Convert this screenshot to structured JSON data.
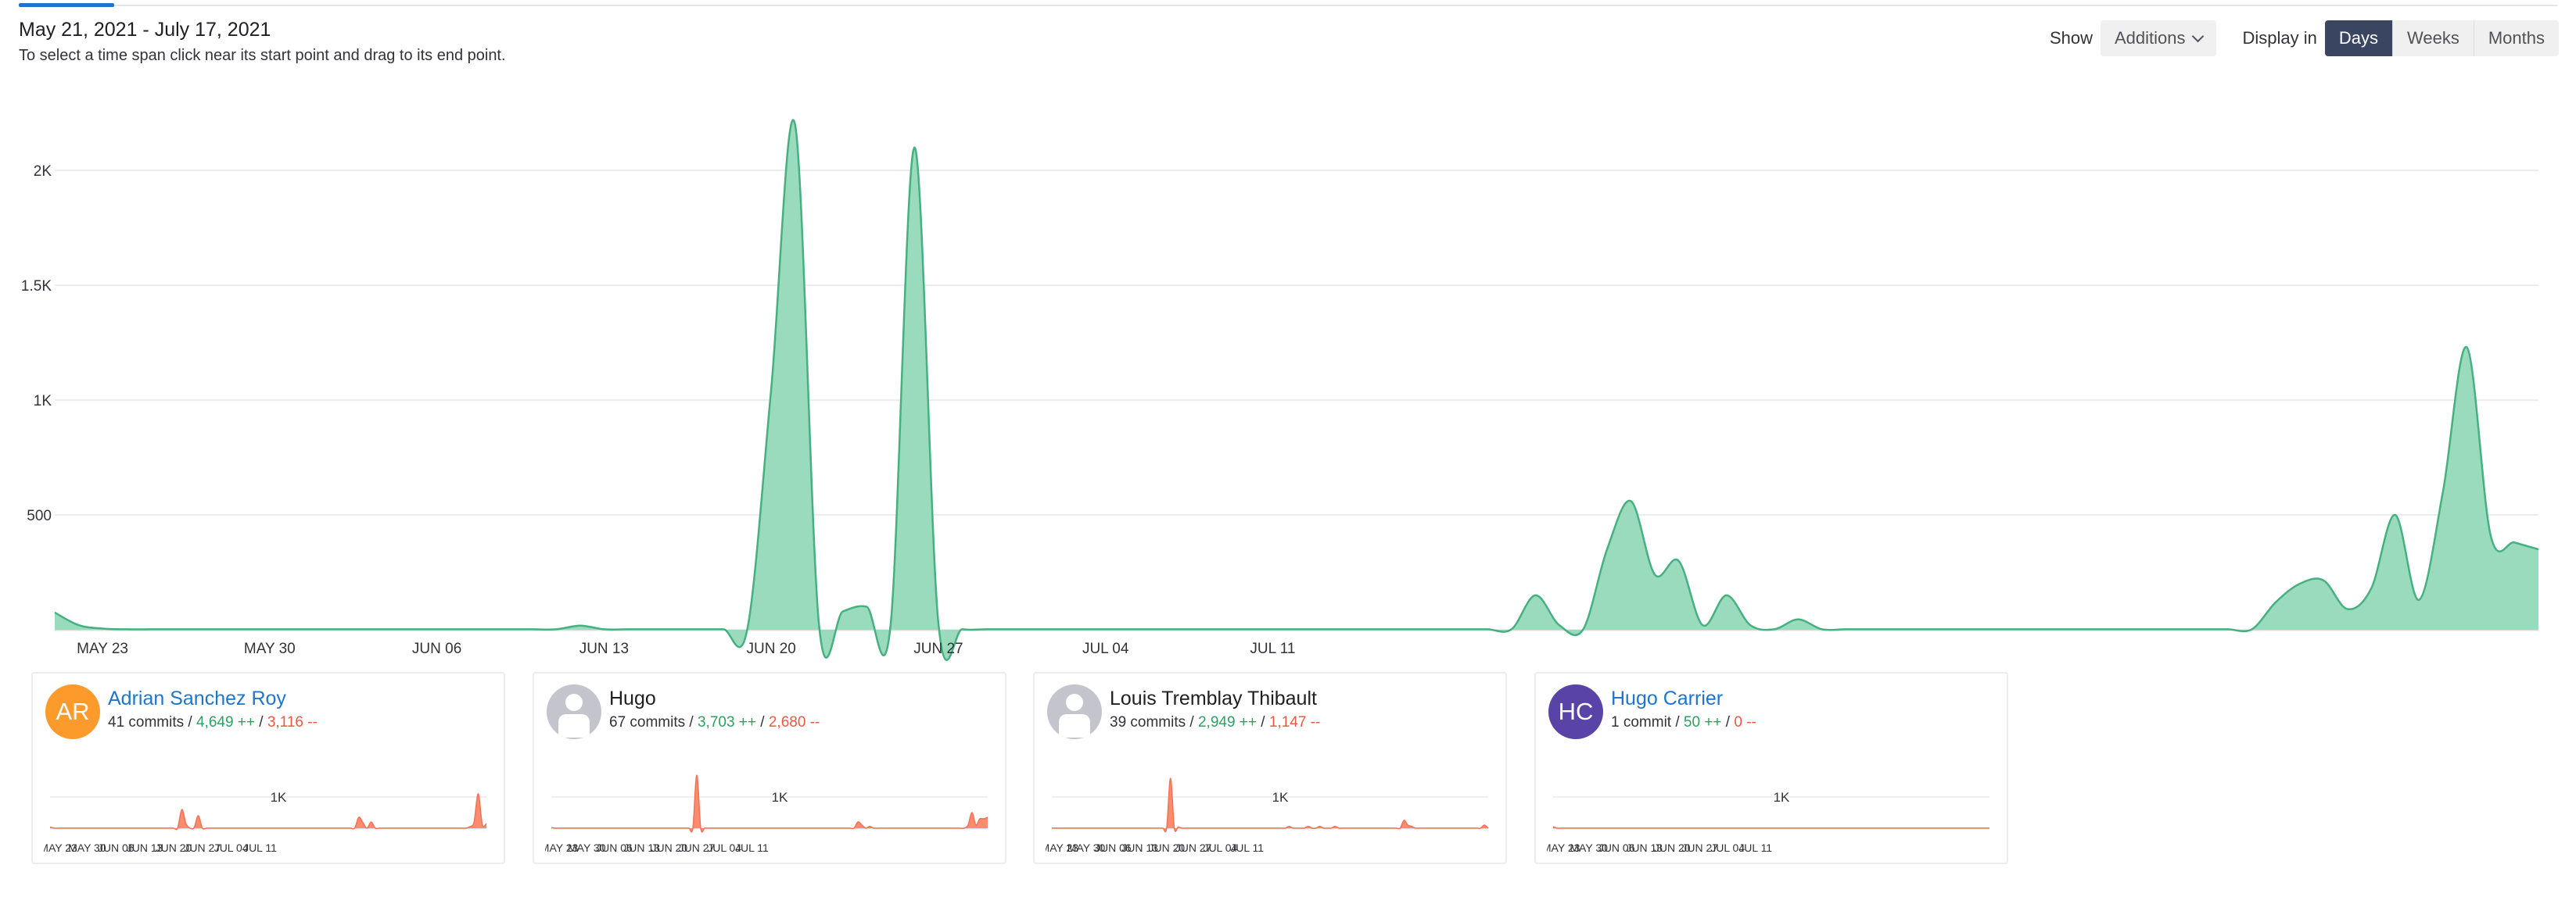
{
  "header": {
    "date_range": "May 21, 2021 - July 17, 2021",
    "hint": "To select a time span click near its start point and drag to its end point."
  },
  "controls": {
    "show_label": "Show",
    "metric_value": "Additions",
    "display_label": "Display in",
    "options": [
      "Days",
      "Weeks",
      "Months"
    ],
    "active_option": "Days"
  },
  "colors": {
    "additions_fill": "#9bdbbd",
    "additions_line": "#46b080",
    "contributor_fill": "#fc8b70",
    "contributor_line": "#f37255",
    "link": "#1f75cb",
    "active_button": "#3a4562"
  },
  "chart_data": [
    {
      "type": "area",
      "series": [
        {
          "values": [
            75,
            20,
            5,
            2,
            2,
            2,
            2,
            2,
            2,
            2,
            2,
            2,
            2,
            2,
            2,
            2,
            2,
            2,
            2,
            2,
            2,
            2,
            18,
            2,
            2,
            2,
            2,
            2,
            2,
            2,
            1050,
            2200,
            25,
            80,
            100,
            20,
            2100,
            30,
            2,
            2,
            2,
            2,
            2,
            2,
            2,
            2,
            2,
            2,
            2,
            2,
            2,
            2,
            2,
            2,
            2,
            2,
            2,
            2,
            2,
            2,
            2,
            2,
            150,
            20,
            2,
            350,
            560,
            240,
            300,
            20,
            150,
            20,
            2,
            45,
            2,
            2,
            2,
            2,
            2,
            2,
            2,
            2,
            2,
            2,
            2,
            2,
            2,
            2,
            2,
            2,
            2,
            2,
            2,
            120,
            200,
            215,
            90,
            180,
            500,
            130,
            600,
            1230,
            410,
            380,
            350
          ]
        }
      ],
      "x_labels": [
        "MAY 23",
        "MAY 30",
        "JUN 06",
        "JUN 13",
        "JUN 20",
        "JUN 27",
        "JUL 04",
        "JUL 11"
      ],
      "y_ticks": [
        "500",
        "1K",
        "1.5K",
        "2K"
      ],
      "ylim": [
        0,
        2300
      ],
      "grid": true
    },
    {
      "type": "area",
      "author": "Adrian Sanchez Roy",
      "commits": "41 commits",
      "additions": "4,649 ++",
      "deletions": "3,116 --",
      "avatar_initials": "AR",
      "avatar_color": "#fc9a2c",
      "is_link": true,
      "y_tick": "1K",
      "x_labels": [
        "MAY 23",
        "MAY 30",
        "JUN 06",
        "JUN 13",
        "JUN 20",
        "JUN 27",
        "JUL 04",
        "JUL 11"
      ],
      "ylim": [
        0,
        1700
      ],
      "values": [
        40,
        2,
        2,
        2,
        2,
        2,
        2,
        2,
        2,
        2,
        2,
        2,
        2,
        2,
        2,
        2,
        2,
        2,
        2,
        2,
        2,
        2,
        2,
        2,
        2,
        2,
        2,
        2,
        2,
        2,
        2,
        2,
        600,
        150,
        2,
        20,
        400,
        2,
        2,
        2,
        2,
        2,
        2,
        2,
        2,
        2,
        2,
        2,
        2,
        2,
        2,
        2,
        2,
        2,
        2,
        2,
        2,
        2,
        2,
        2,
        2,
        2,
        2,
        2,
        2,
        2,
        2,
        2,
        2,
        2,
        2,
        2,
        2,
        2,
        2,
        350,
        180,
        2,
        200,
        2,
        2,
        2,
        2,
        2,
        2,
        2,
        2,
        2,
        2,
        2,
        2,
        2,
        2,
        2,
        2,
        2,
        2,
        2,
        2,
        2,
        2,
        2,
        50,
        200,
        1100,
        120,
        150
      ]
    },
    {
      "type": "area",
      "author": "Hugo",
      "commits": "67 commits",
      "additions": "3,703 ++",
      "deletions": "2,680 --",
      "avatar_initials": "",
      "avatar_color": "#c4c5cc",
      "is_link": false,
      "y_tick": "1K",
      "x_labels": [
        "MAY 23",
        "MAY 30",
        "JUN 06",
        "JUN 13",
        "JUN 20",
        "JUN 27",
        "JUL 04",
        "JUL 11"
      ],
      "ylim": [
        0,
        1700
      ],
      "values": [
        20,
        2,
        2,
        2,
        2,
        2,
        2,
        2,
        2,
        2,
        2,
        2,
        2,
        2,
        2,
        2,
        2,
        2,
        2,
        2,
        2,
        2,
        2,
        2,
        2,
        2,
        2,
        2,
        2,
        2,
        2,
        2,
        2,
        2,
        2,
        2,
        2,
        1700,
        2,
        2,
        2,
        2,
        2,
        2,
        2,
        2,
        2,
        2,
        2,
        2,
        2,
        2,
        2,
        2,
        2,
        2,
        2,
        2,
        2,
        2,
        2,
        2,
        2,
        2,
        2,
        2,
        2,
        2,
        2,
        2,
        2,
        2,
        2,
        2,
        2,
        2,
        2,
        2,
        200,
        100,
        2,
        60,
        2,
        2,
        2,
        2,
        2,
        2,
        2,
        2,
        2,
        2,
        2,
        2,
        2,
        2,
        2,
        2,
        2,
        2,
        2,
        2,
        2,
        2,
        2,
        2,
        100,
        500,
        100,
        300,
        300,
        350
      ]
    },
    {
      "type": "area",
      "author": "Louis Tremblay Thibault",
      "commits": "39 commits",
      "additions": "2,949 ++",
      "deletions": "1,147 --",
      "avatar_initials": "",
      "avatar_color": "#c4c5cc",
      "is_link": false,
      "y_tick": "1K",
      "x_labels": [
        "MAY 23",
        "MAY 30",
        "JUN 06",
        "JUN 13",
        "JUN 20",
        "JUN 27",
        "JUL 04",
        "JUL 11"
      ],
      "ylim": [
        0,
        1700
      ],
      "values": [
        2,
        2,
        2,
        2,
        2,
        2,
        2,
        2,
        2,
        2,
        2,
        2,
        2,
        2,
        2,
        2,
        2,
        2,
        2,
        2,
        2,
        2,
        2,
        2,
        2,
        2,
        2,
        2,
        2,
        2,
        2,
        1600,
        2,
        40,
        2,
        2,
        2,
        2,
        2,
        2,
        2,
        2,
        2,
        2,
        2,
        2,
        2,
        2,
        2,
        2,
        2,
        2,
        2,
        2,
        2,
        2,
        2,
        2,
        2,
        2,
        2,
        2,
        60,
        2,
        2,
        2,
        2,
        60,
        2,
        2,
        60,
        2,
        2,
        2,
        60,
        2,
        2,
        2,
        2,
        2,
        2,
        2,
        2,
        2,
        2,
        2,
        2,
        2,
        2,
        2,
        2,
        2,
        250,
        100,
        60,
        2,
        2,
        2,
        2,
        2,
        2,
        2,
        2,
        2,
        2,
        2,
        2,
        2,
        2,
        2,
        2,
        2,
        2,
        100,
        2
      ]
    },
    {
      "type": "area",
      "author": "Hugo Carrier",
      "commits": "1 commit",
      "additions": "50 ++",
      "deletions": "0 --",
      "avatar_initials": "HC",
      "avatar_color": "#5a43a6",
      "is_link": true,
      "y_tick": "1K",
      "x_labels": [
        "MAY 23",
        "MAY 30",
        "JUN 06",
        "JUN 13",
        "JUN 20",
        "JUN 27",
        "JUL 04",
        "JUL 11"
      ],
      "ylim": [
        0,
        1700
      ],
      "values": [
        50,
        2,
        2,
        2,
        2,
        2,
        2,
        2,
        2,
        2,
        2,
        2,
        2,
        2,
        2,
        2,
        2,
        2,
        2,
        2,
        2,
        2,
        2,
        2,
        2,
        2,
        2,
        2,
        2,
        2,
        2,
        2,
        2,
        2,
        2,
        2,
        2,
        2,
        2,
        2,
        2,
        2,
        2,
        2,
        2,
        2,
        2,
        2,
        2,
        2,
        2,
        2,
        2,
        2,
        2,
        2,
        2,
        2,
        2,
        2,
        2,
        2,
        2,
        2,
        2,
        2,
        2,
        2,
        2,
        2,
        2,
        2,
        2,
        2,
        2,
        2,
        2,
        2,
        2,
        2,
        2,
        2,
        2,
        2,
        2,
        2,
        2,
        2,
        2,
        2,
        2,
        2,
        2,
        2,
        2,
        2,
        2,
        2,
        2,
        2,
        2,
        2,
        2,
        2,
        2,
        2,
        2,
        2,
        2,
        2,
        2
      ]
    }
  ]
}
